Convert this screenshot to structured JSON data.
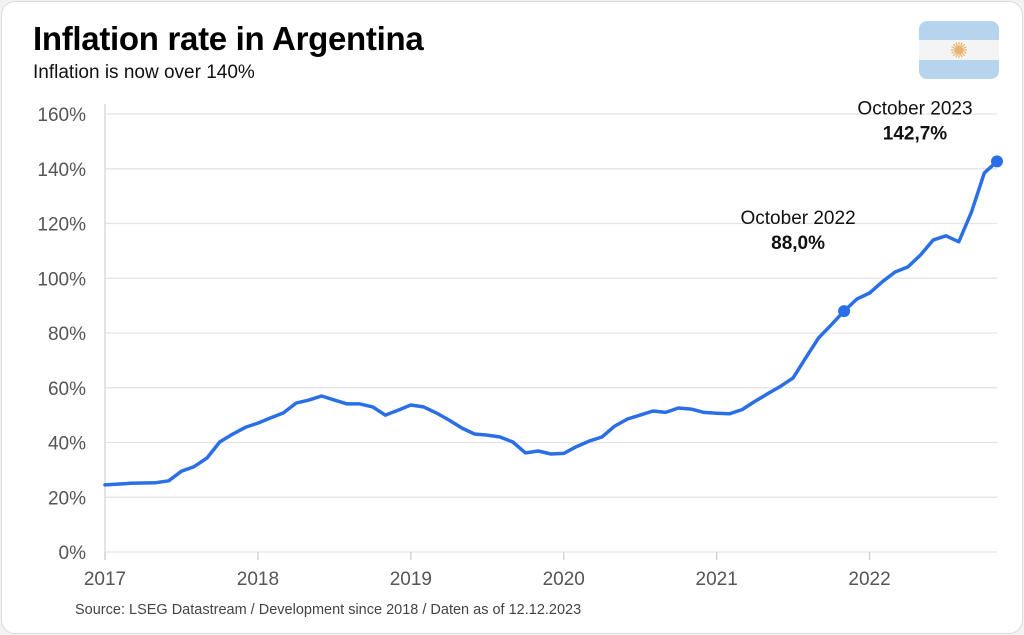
{
  "header": {
    "title": "Inflation rate in Argentina",
    "subtitle": "Inflation is now over 140%"
  },
  "footer": {
    "source": "Source: LSEG Datastream / Development since 2018 / Daten as of 12.12.2023"
  },
  "flag": {
    "icon": "argentina-flag-icon",
    "colors": {
      "blue": "#b7d4ef",
      "white": "#f4f4f4",
      "sun": "#e8b370"
    }
  },
  "chart_data": {
    "type": "line",
    "title": "Inflation rate in Argentina",
    "subtitle": "Inflation is now over 140%",
    "xlabel": "",
    "ylabel": "",
    "ylim": [
      0,
      160
    ],
    "yticks": [
      "0%",
      "20%",
      "40%",
      "60%",
      "80%",
      "100%",
      "120%",
      "140%",
      "160%"
    ],
    "ytick_values": [
      0,
      20,
      40,
      60,
      80,
      100,
      120,
      140,
      160
    ],
    "x_unit": "month index",
    "xlim": [
      0,
      70
    ],
    "xticks": [
      {
        "value": 0,
        "label": "2017"
      },
      {
        "value": 12,
        "label": "2018"
      },
      {
        "value": 24,
        "label": "2019"
      },
      {
        "value": 36,
        "label": "2020"
      },
      {
        "value": 48,
        "label": "2021"
      },
      {
        "value": 60,
        "label": "2022"
      }
    ],
    "grid": true,
    "color": "#2b6fe6",
    "series": [
      {
        "values": [
          24.5,
          24.8,
          25.1,
          25.2,
          25.3,
          26.0,
          29.5,
          31.2,
          34.3,
          40.2,
          43.0,
          45.5,
          47.1,
          49.0,
          50.8,
          54.4,
          55.5,
          57.0,
          55.5,
          54.1,
          54.1,
          53.0,
          50.0,
          51.8,
          53.7,
          53.0,
          50.8,
          48.2,
          45.3,
          43.1,
          42.7,
          42.0,
          40.2,
          36.2,
          36.9,
          35.8,
          36.0,
          38.5,
          40.5,
          42.0,
          46.0,
          48.6,
          50.0,
          51.5,
          51.0,
          52.6,
          52.2,
          51.0,
          50.7,
          50.5,
          52.0,
          55.0,
          57.8,
          60.5,
          63.6,
          71.0,
          78.2,
          83.0,
          88.0,
          92.4,
          94.6,
          98.7,
          102.3,
          104.1,
          108.5,
          114.0,
          115.5,
          113.3,
          124.2,
          138.5,
          142.7
        ]
      }
    ],
    "annotations": [
      {
        "index": 58,
        "label": "October 2022",
        "value_label": "88,0%"
      },
      {
        "index": 70,
        "label": "October 2023",
        "value_label": "142,7%"
      }
    ]
  }
}
